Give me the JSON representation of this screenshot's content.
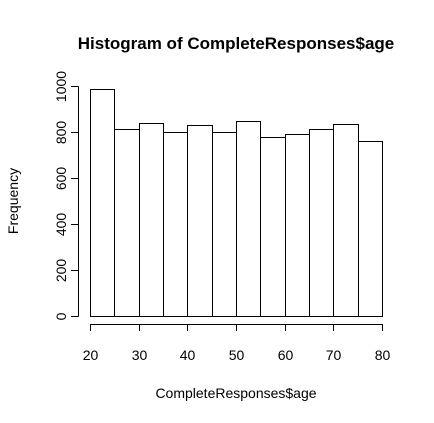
{
  "chart_data": {
    "type": "bar",
    "title": "Histogram of CompleteResponses$age",
    "xlabel": "CompleteResponses$age",
    "ylabel": "Frequency",
    "bin_edges": [
      20,
      25,
      30,
      35,
      40,
      45,
      50,
      55,
      60,
      65,
      70,
      75,
      80
    ],
    "values": [
      985,
      812,
      838,
      798,
      830,
      798,
      848,
      780,
      793,
      812,
      836,
      760
    ],
    "xlim": [
      20,
      80
    ],
    "ylim": [
      0,
      1000
    ],
    "xticks": [
      "20",
      "30",
      "40",
      "50",
      "60",
      "70",
      "80"
    ],
    "yticks": [
      "0",
      "200",
      "400",
      "600",
      "800",
      "1000"
    ],
    "grid": false,
    "bar_fill": "#ffffff",
    "bar_stroke": "#000000"
  }
}
